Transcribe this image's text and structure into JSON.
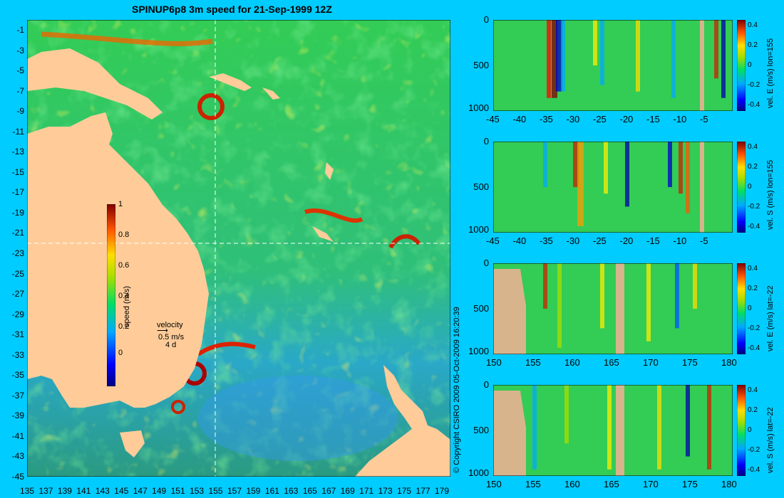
{
  "title": "SPINUP6p8 3m speed for 21-Sep-1999 12Z",
  "copyright": "© Copyright CSIRO 2009   05-Oct-2009 16:20:39",
  "map": {
    "lat_ticks": [
      "-1",
      "-3",
      "-5",
      "-7",
      "-9",
      "-11",
      "-13",
      "-15",
      "-17",
      "-19",
      "-21",
      "-23",
      "-25",
      "-27",
      "-29",
      "-31",
      "-33",
      "-35",
      "-37",
      "-39",
      "-41",
      "-43",
      "-45"
    ],
    "lon_ticks": [
      "135",
      "137",
      "139",
      "141",
      "143",
      "145",
      "147",
      "149",
      "151",
      "153",
      "155",
      "157",
      "159",
      "161",
      "163",
      "165",
      "167",
      "169",
      "171",
      "173",
      "175",
      "177",
      "179"
    ],
    "colorbar": {
      "label": "speed (m/s)",
      "ticks": [
        "1",
        "0.8",
        "0.6",
        "0.4",
        "0.2",
        "0"
      ]
    },
    "velocity_key": {
      "title": "velocity",
      "speed": "0.5 m/s",
      "duration": "4 d"
    },
    "section_lines": {
      "lon": 155,
      "lat": -22
    }
  },
  "panels": [
    {
      "id": "p1",
      "xticks": [
        "-45",
        "-40",
        "-35",
        "-30",
        "-25",
        "-20",
        "-15",
        "-10",
        "-5"
      ],
      "yticks": [
        "0",
        "500",
        "1000"
      ],
      "cbar_label": "vel. E (m/s) lon=155",
      "cbar_ticks": [
        "0.4",
        "0.2",
        "0",
        "-0.2",
        "-0.4"
      ]
    },
    {
      "id": "p2",
      "xticks": [
        "-45",
        "-40",
        "-35",
        "-30",
        "-25",
        "-20",
        "-15",
        "-10",
        "-5"
      ],
      "yticks": [
        "0",
        "500",
        "1000"
      ],
      "cbar_label": "vel. S (m/s) lon=155",
      "cbar_ticks": [
        "0.4",
        "0.2",
        "0",
        "-0.2",
        "-0.4"
      ]
    },
    {
      "id": "p3",
      "xticks": [
        "150",
        "155",
        "160",
        "165",
        "170",
        "175",
        "180"
      ],
      "yticks": [
        "0",
        "500",
        "1000"
      ],
      "cbar_label": "vel. E (m/s) lat=-22",
      "cbar_ticks": [
        "0.4",
        "0.2",
        "0",
        "-0.2",
        "-0.4"
      ]
    },
    {
      "id": "p4",
      "xticks": [
        "150",
        "155",
        "160",
        "165",
        "170",
        "175",
        "180"
      ],
      "yticks": [
        "0",
        "500",
        "1000"
      ],
      "cbar_label": "vel. S (m/s) lat=-22",
      "cbar_ticks": [
        "0.4",
        "0.2",
        "0",
        "-0.2",
        "-0.4"
      ]
    }
  ],
  "colors": {
    "background": "#00ccff",
    "land": "#ffcc99",
    "section_land": "#d8b48c",
    "ocean_base": "#33cc66"
  }
}
